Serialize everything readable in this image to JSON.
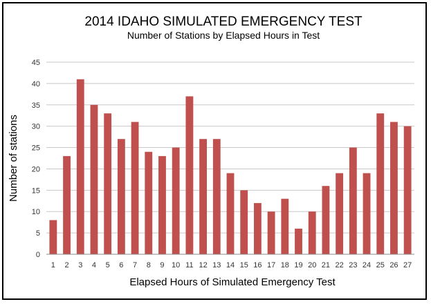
{
  "chart_data": {
    "type": "bar",
    "title": "2014 IDAHO SIMULATED EMERGENCY TEST",
    "subtitle": "Number of Stations by Elapsed Hours in Test",
    "xlabel": "Elapsed Hours of Simulated Emergency Test",
    "ylabel": "Number of stations",
    "categories": [
      "1",
      "2",
      "3",
      "4",
      "5",
      "6",
      "7",
      "8",
      "9",
      "10",
      "11",
      "12",
      "13",
      "14",
      "15",
      "16",
      "17",
      "18",
      "19",
      "20",
      "21",
      "22",
      "23",
      "24",
      "25",
      "26",
      "27"
    ],
    "values": [
      8,
      23,
      41,
      35,
      33,
      27,
      31,
      24,
      23,
      25,
      37,
      27,
      27,
      19,
      15,
      12,
      10,
      13,
      6,
      10,
      16,
      19,
      25,
      19,
      33,
      31,
      30
    ],
    "ylim": [
      0,
      45
    ],
    "yticks": [
      0,
      5,
      10,
      15,
      20,
      25,
      30,
      35,
      40,
      45
    ],
    "grid": true,
    "legend": "none",
    "bar_color": "#c0504d"
  }
}
